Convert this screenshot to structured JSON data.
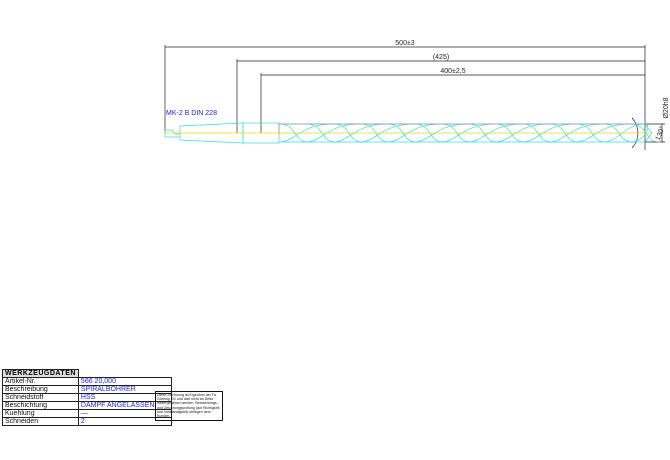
{
  "dimensions": {
    "overall_length": "500±3",
    "reference_length": "(425)",
    "flute_length": "400±2,5",
    "diameter": "Ø20h8",
    "point_angle": "130°"
  },
  "shank_label": "MK-2 B DIN 228",
  "colors": {
    "drill": "#33dddd",
    "axis": "#eedd00",
    "cutting_edge": "#ee6666",
    "dimension": "#222222",
    "text_blue": "#2222dd"
  },
  "table": {
    "title": "WERKZEUGDATEN",
    "rows": [
      {
        "key": "Artikel-Nr.",
        "value": "566 20,000"
      },
      {
        "key": "Beschreibung",
        "value": "SPIRALBOHRER"
      },
      {
        "key": "Schneidstoff",
        "value": "HSS"
      },
      {
        "key": "Beschichtung",
        "value": "DAMPF ANGELASSEN"
      },
      {
        "key": "Kuehlung",
        "value": "—"
      },
      {
        "key": "Schneiden",
        "value": "2"
      }
    ]
  },
  "note": "Diese Zeichnung ist Eigentum der Fa. Gühring KG und darf nicht an Dritte weitergegeben werden. Bearbeitungs- und Zeichnungsprüfung (auf Richtigkeit und Vollständigkeit) obliegen dem Kunden."
}
